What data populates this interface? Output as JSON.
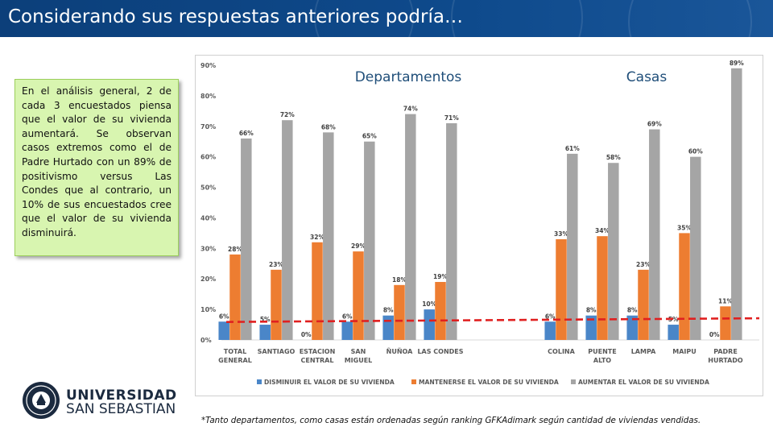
{
  "header": {
    "title": "Considerando sus respuestas anteriores podría…"
  },
  "callout": {
    "text": "En el análisis general, 2 de cada 3 encuestados piensa que el valor de su vivienda aumentará. Se observan casos extremos como el de Padre Hurtado con un 89% de positivismo versus Las Condes que al contrario, un 10% de sus encuestados cree que el valor de su vivienda disminuirá."
  },
  "footnote": "*Tanto departamentos, como casas están ordenadas según ranking GFKAdimark según cantidad de viviendas vendidas.",
  "logo": {
    "line1": "UNIVERSIDAD",
    "line2": "SAN SEBASTIAN"
  },
  "colors": {
    "header": "#0e4a8c",
    "disminuir": "#4a86c8",
    "mantenerse": "#ed7d31",
    "aumentar": "#a5a5a5",
    "dashed": "#e02020",
    "section_label": "#1f4e79",
    "callout_bg": "#d8f5b0"
  },
  "chart_data": {
    "type": "bar",
    "group_labels": [
      "Departamentos",
      "Casas"
    ],
    "categories": [
      {
        "label": [
          "TOTAL",
          "GENERAL"
        ],
        "group": "Departamentos"
      },
      {
        "label": [
          "SANTIAGO"
        ],
        "group": "Departamentos"
      },
      {
        "label": [
          "ESTACION",
          "CENTRAL"
        ],
        "group": "Departamentos"
      },
      {
        "label": [
          "SAN",
          "MIGUEL"
        ],
        "group": "Departamentos"
      },
      {
        "label": [
          "ÑUÑOA"
        ],
        "group": "Departamentos"
      },
      {
        "label": [
          "LAS CONDES"
        ],
        "group": "Departamentos"
      },
      {
        "label": [
          "COLINA"
        ],
        "group": "Casas"
      },
      {
        "label": [
          "PUENTE",
          "ALTO"
        ],
        "group": "Casas"
      },
      {
        "label": [
          "LAMPA"
        ],
        "group": "Casas"
      },
      {
        "label": [
          "MAIPU"
        ],
        "group": "Casas"
      },
      {
        "label": [
          "PADRE",
          "HURTADO"
        ],
        "group": "Casas"
      }
    ],
    "series": [
      {
        "name": "DISMINUIR EL VALOR DE SU VIVIENDA",
        "color": "#4a86c8",
        "values": [
          6,
          5,
          0,
          6,
          8,
          10,
          6,
          8,
          8,
          5,
          0
        ]
      },
      {
        "name": "MANTENERSE EL VALOR DE SU VIVIENDA",
        "color": "#ed7d31",
        "values": [
          28,
          23,
          32,
          29,
          18,
          19,
          33,
          34,
          23,
          35,
          11
        ]
      },
      {
        "name": "AUMENTAR EL VALOR DE SU VIVIENDA",
        "color": "#a5a5a5",
        "values": [
          66,
          72,
          68,
          65,
          74,
          71,
          61,
          58,
          69,
          60,
          89
        ]
      }
    ],
    "value_suffix": "%",
    "yticks": [
      "0%",
      "10%",
      "20%",
      "30%",
      "40%",
      "50%",
      "60%",
      "70%",
      "80%",
      "90%"
    ],
    "ylim": [
      0,
      90
    ],
    "reference_line": {
      "style": "dashed",
      "color": "#e02020",
      "y_start": 5.9,
      "y_end": 7.1
    },
    "legend_position": "bottom",
    "grid": false
  }
}
